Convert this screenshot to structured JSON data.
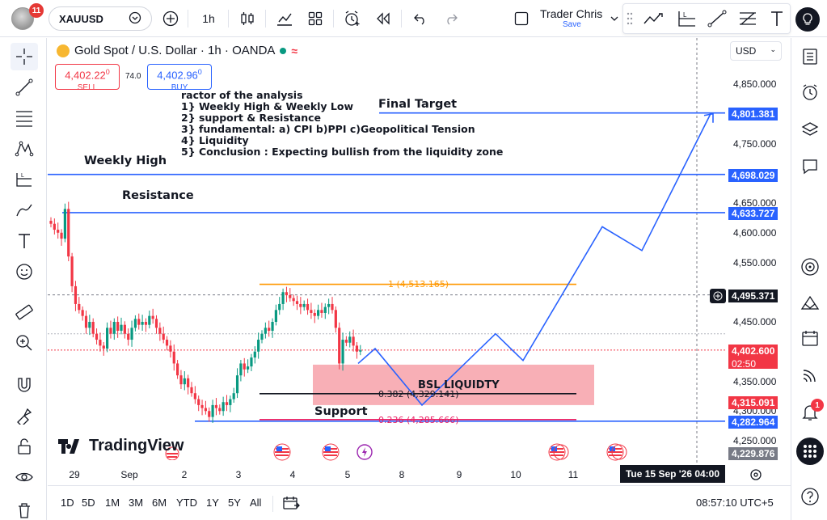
{
  "topbar": {
    "notification_count": "11",
    "symbol": "XAUUSD",
    "interval": "1h",
    "user_name": "Trader Chris",
    "save_label": "Save"
  },
  "legend": {
    "title": "Gold Spot / U.S. Dollar · 1h · OANDA",
    "sell_price_main": "4,402.22",
    "sell_price_sup": "0",
    "sell_label": "SELL",
    "spread": "74.0",
    "buy_price_main": "4,402.96",
    "buy_price_sup": "0",
    "buy_label": "BUY"
  },
  "annotations": {
    "analysis_lines": [
      "ractor of the analysis",
      "1} Weekly High & Weekly Low",
      "2} support & Resistance",
      "3} fundamental: a) CPI b)PPI  c)Geopolitical Tension",
      "4} Liquidity",
      "5} Conclusion : Expecting bullish from the liquidity zone"
    ],
    "final_target": "Final Target",
    "weekly_high": "Weekly High",
    "resistance": "Resistance",
    "support": "Support",
    "bsl_liquidity": "BSL LIQUIDTY",
    "fib_1": "1 (4,513.165)",
    "fib_0382": "0.382 (4,329.141)",
    "fib_0236": "0.236 (4,285.666)"
  },
  "price_axis": {
    "currency": "USD",
    "ticks": [
      "4,850.000",
      "4,750.000",
      "4,650.000",
      "4,600.000",
      "4,550.000",
      "4,450.000",
      "4,350.000",
      "4,300.000",
      "4,250.000"
    ],
    "labels": {
      "final_target": "4,801.381",
      "weekly_high": "4,698.029",
      "resistance": "4,633.727",
      "crosshair": "4,495.371",
      "last_price": "4,402.600",
      "countdown": "02:50",
      "red_level": "4,315.091",
      "support": "4,282.964",
      "low_gray": "4,229.876"
    }
  },
  "time_axis": {
    "ticks": [
      "29",
      "Sep",
      "2",
      "3",
      "4",
      "5",
      "8",
      "9",
      "10",
      "11"
    ],
    "crosshair_time": "Tue 15 Sep '26   04:00"
  },
  "bottombar": {
    "ranges": [
      "1D",
      "5D",
      "1M",
      "3M",
      "6M",
      "YTD",
      "1Y",
      "5Y",
      "All"
    ],
    "clock": "08:57:10 UTC+5"
  },
  "branding": {
    "logo_text": "TradingView"
  },
  "right_notif_count": "1",
  "colors": {
    "up": "#089981",
    "down": "#f23645",
    "line_blue": "#2962ff",
    "fib_orange": "#ff9800",
    "zone_pink": "#f7a1a9",
    "label_blue": "#2962ff",
    "label_red": "#f23645"
  },
  "chart_data": {
    "type": "candlestick",
    "symbol": "XAUUSD",
    "timeframe": "1h",
    "levels": {
      "final_target": 4801.381,
      "weekly_high": 4698.029,
      "resistance": 4633.727,
      "fib_1": 4513.165,
      "fib_0382": 4329.141,
      "fib_0236": 4285.666,
      "support": 4282.964,
      "last_price": 4402.6
    },
    "projection_path": [
      4380,
      4400,
      4310,
      4395,
      4425,
      4380,
      4610,
      4570,
      4800
    ],
    "closes": [
      4615,
      4605,
      4600,
      4590,
      4640,
      4560,
      4510,
      4480,
      4470,
      4460,
      4440,
      4450,
      4430,
      4420,
      4410,
      4405,
      4440,
      4430,
      4450,
      4435,
      4445,
      4430,
      4420,
      4440,
      4455,
      4445,
      4450,
      4445,
      4460,
      4455,
      4440,
      4430,
      4420,
      4410,
      4400,
      4380,
      4360,
      4345,
      4355,
      4340,
      4330,
      4320,
      4310,
      4305,
      4300,
      4290,
      4310,
      4305,
      4300,
      4315,
      4310,
      4320,
      4330,
      4360,
      4380,
      4370,
      4375,
      4390,
      4400,
      4420,
      4430,
      4440,
      4435,
      4450,
      4470,
      4480,
      4500,
      4495,
      4490,
      4485,
      4480,
      4475,
      4480,
      4470,
      4465,
      4460,
      4470,
      4465,
      4475,
      4480,
      4470,
      4440,
      4380,
      4420,
      4415,
      4425,
      4410,
      4400,
      4402
    ]
  }
}
